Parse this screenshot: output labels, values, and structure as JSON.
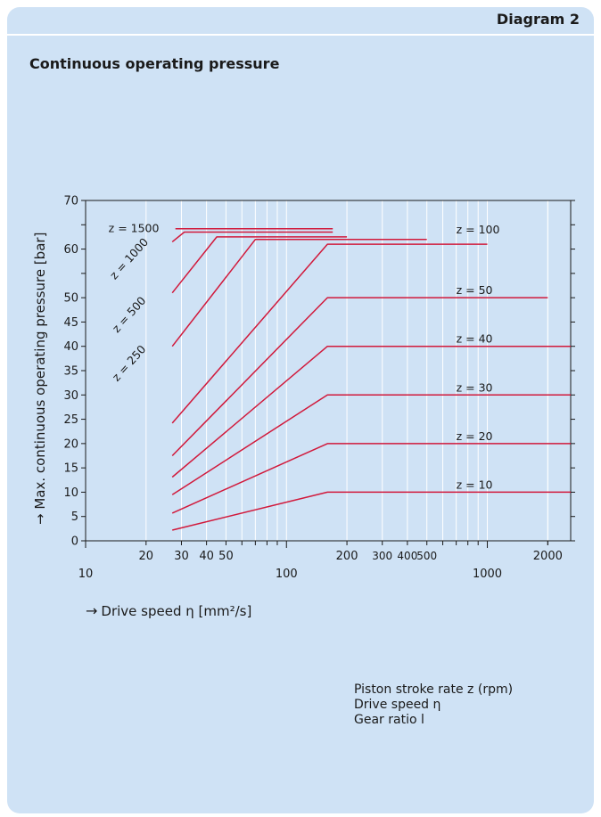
{
  "header": {
    "badge": "Diagram 2",
    "title": "Continuous operating pressure"
  },
  "legend": {
    "lines": [
      "Piston stroke rate z (rpm)",
      "Drive speed η",
      "Gear ratio l"
    ]
  },
  "colors": {
    "panel": "#cfe2f5",
    "curve": "#d1193b",
    "grid": "#ffffff",
    "axis": "#1a1a1a"
  },
  "chart_data": {
    "type": "line",
    "xscale": "log",
    "xlabel": "Drive speed η [mm²/s]",
    "ylabel": "Max. continuous operating pressure [bar]",
    "xlim": [
      10,
      2600
    ],
    "ylim": [
      0,
      70
    ],
    "x_tick_labels": [
      {
        "x": 10,
        "label": "10",
        "row": 2
      },
      {
        "x": 20,
        "label": "20",
        "row": 1
      },
      {
        "x": 30,
        "label": "30",
        "row": 1
      },
      {
        "x": 40,
        "label": "40",
        "row": 1
      },
      {
        "x": 50,
        "label": "50",
        "row": 1
      },
      {
        "x": 100,
        "label": "100",
        "row": 2
      },
      {
        "x": 200,
        "label": "200",
        "row": 1
      },
      {
        "x": 300,
        "label": "300",
        "row": 1
      },
      {
        "x": 400,
        "label": "400",
        "row": 1
      },
      {
        "x": 500,
        "label": "500",
        "row": 1
      },
      {
        "x": 1000,
        "label": "1000",
        "row": 2
      },
      {
        "x": 2000,
        "label": "2000",
        "row": 1
      }
    ],
    "y_ticks": [
      0,
      5,
      10,
      15,
      20,
      25,
      30,
      35,
      40,
      45,
      50,
      55,
      60,
      65,
      70
    ],
    "y_tick_labels": [
      0,
      5,
      10,
      15,
      20,
      25,
      30,
      35,
      40,
      45,
      50,
      60,
      70
    ],
    "series": [
      {
        "name": "z = 10",
        "points": [
          [
            27,
            2.2
          ],
          [
            160,
            10
          ],
          [
            2600,
            10
          ]
        ]
      },
      {
        "name": "z = 20",
        "points": [
          [
            27,
            5.7
          ],
          [
            160,
            20
          ],
          [
            2600,
            20
          ]
        ]
      },
      {
        "name": "z = 30",
        "points": [
          [
            27,
            9.5
          ],
          [
            160,
            30
          ],
          [
            2600,
            30
          ]
        ]
      },
      {
        "name": "z = 40",
        "points": [
          [
            27,
            13.1
          ],
          [
            160,
            40
          ],
          [
            2600,
            40
          ]
        ]
      },
      {
        "name": "z = 50",
        "points": [
          [
            27,
            17.5
          ],
          [
            160,
            50
          ],
          [
            2000,
            50
          ]
        ]
      },
      {
        "name": "z = 100",
        "points": [
          [
            27,
            24.2
          ],
          [
            160,
            61
          ],
          [
            1000,
            61
          ]
        ]
      },
      {
        "name": "z = 250",
        "points": [
          [
            27,
            40
          ],
          [
            70,
            62
          ],
          [
            500,
            62
          ]
        ]
      },
      {
        "name": "z = 500",
        "points": [
          [
            27,
            51
          ],
          [
            45,
            62.5
          ],
          [
            200,
            62.5
          ]
        ]
      },
      {
        "name": "z = 1000",
        "points": [
          [
            27,
            61.5
          ],
          [
            31,
            63.5
          ],
          [
            170,
            63.5
          ]
        ]
      },
      {
        "name": "z = 1500",
        "points": [
          [
            28,
            64.2
          ],
          [
            170,
            64.2
          ]
        ]
      }
    ],
    "annotations": [
      {
        "text": "z = 10",
        "x": 700,
        "y": 10
      },
      {
        "text": "z = 20",
        "x": 700,
        "y": 20
      },
      {
        "text": "z = 30",
        "x": 700,
        "y": 30
      },
      {
        "text": "z = 40",
        "x": 700,
        "y": 40
      },
      {
        "text": "z = 50",
        "x": 700,
        "y": 50
      },
      {
        "text": "z = 100",
        "x": 700,
        "y": 62.5
      },
      {
        "text": "z = 250",
        "x": 17,
        "y": 36,
        "angle": -48
      },
      {
        "text": "z = 500",
        "x": 17,
        "y": 46,
        "angle": -48
      },
      {
        "text": "z = 1000",
        "x": 17,
        "y": 57.5,
        "angle": -48
      },
      {
        "text": "z = 1500",
        "x": 13,
        "y": 64.2
      }
    ],
    "grid": true
  }
}
